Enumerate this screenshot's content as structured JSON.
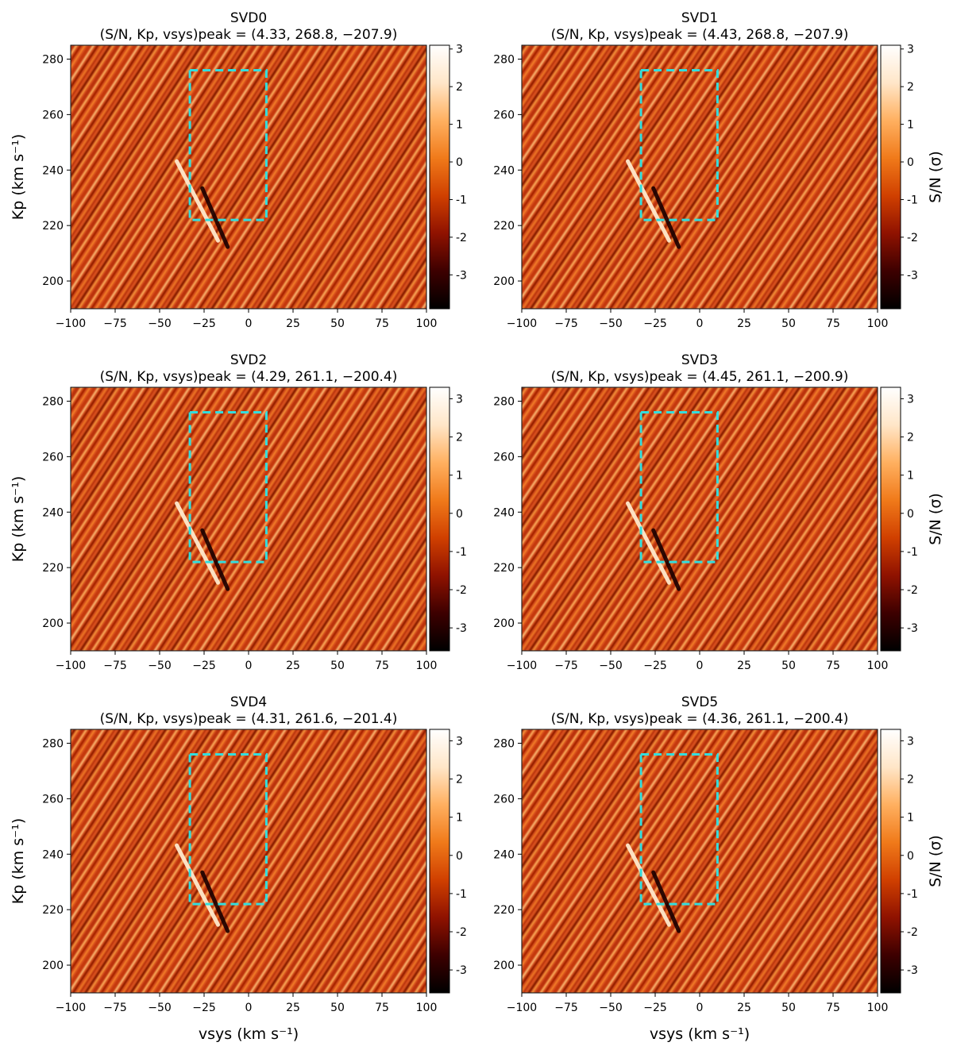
{
  "figure": {
    "description_free": true
  },
  "colorbar": {
    "label": "S/N (σ)",
    "ticks": [
      "3",
      "2",
      "1",
      "0",
      "-1",
      "-2",
      "-3"
    ],
    "colormap": [
      "#000000",
      "#3d0000",
      "#8f1200",
      "#d04000",
      "#f07a1a",
      "#ffb060",
      "#ffe6c8",
      "#ffffff"
    ]
  },
  "box_color": "#33dddd",
  "chart_data": [
    {
      "type": "heatmap",
      "name": "SVD0",
      "title": "SVD0",
      "subtitle": "(S/N, Kp, vsys)peak = (4.33, 268.8, −207.9)",
      "peak": {
        "snr": 4.33,
        "kp": 268.8,
        "vsys": -207.9
      },
      "xlim": [
        -100,
        100
      ],
      "ylim": [
        190,
        285
      ],
      "xticks": [
        -100,
        -75,
        -50,
        -25,
        0,
        25,
        50,
        75,
        100
      ],
      "yticks": [
        200,
        220,
        240,
        260,
        280
      ],
      "xlabel": "",
      "ylabel": "Kp (km s⁻¹)",
      "colorbar_range": [
        -3.9,
        3.1
      ],
      "colorbar_label": "",
      "box": {
        "x": [
          -33,
          10
        ],
        "y": [
          222,
          276
        ]
      }
    },
    {
      "type": "heatmap",
      "name": "SVD1",
      "title": "SVD1",
      "subtitle": "(S/N, Kp, vsys)peak = (4.43, 268.8, −207.9)",
      "peak": {
        "snr": 4.43,
        "kp": 268.8,
        "vsys": -207.9
      },
      "xlim": [
        -100,
        100
      ],
      "ylim": [
        190,
        285
      ],
      "xticks": [
        -100,
        -75,
        -50,
        -25,
        0,
        25,
        50,
        75,
        100
      ],
      "yticks": [
        200,
        220,
        240,
        260,
        280
      ],
      "xlabel": "",
      "ylabel": "",
      "colorbar_range": [
        -3.9,
        3.1
      ],
      "colorbar_label": "S/N (σ)",
      "box": {
        "x": [
          -33,
          10
        ],
        "y": [
          222,
          276
        ]
      }
    },
    {
      "type": "heatmap",
      "name": "SVD2",
      "title": "SVD2",
      "subtitle": "(S/N, Kp, vsys)peak = (4.29, 261.1, −200.4)",
      "peak": {
        "snr": 4.29,
        "kp": 261.1,
        "vsys": -200.4
      },
      "xlim": [
        -100,
        100
      ],
      "ylim": [
        190,
        285
      ],
      "xticks": [
        -100,
        -75,
        -50,
        -25,
        0,
        25,
        50,
        75,
        100
      ],
      "yticks": [
        200,
        220,
        240,
        260,
        280
      ],
      "xlabel": "",
      "ylabel": "Kp (km s⁻¹)",
      "colorbar_range": [
        -3.6,
        3.3
      ],
      "colorbar_label": "",
      "box": {
        "x": [
          -33,
          10
        ],
        "y": [
          222,
          276
        ]
      }
    },
    {
      "type": "heatmap",
      "name": "SVD3",
      "title": "SVD3",
      "subtitle": "(S/N, Kp, vsys)peak = (4.45, 261.1, −200.9)",
      "peak": {
        "snr": 4.45,
        "kp": 261.1,
        "vsys": -200.9
      },
      "xlim": [
        -100,
        100
      ],
      "ylim": [
        190,
        285
      ],
      "xticks": [
        -100,
        -75,
        -50,
        -25,
        0,
        25,
        50,
        75,
        100
      ],
      "yticks": [
        200,
        220,
        240,
        260,
        280
      ],
      "xlabel": "",
      "ylabel": "",
      "colorbar_range": [
        -3.6,
        3.3
      ],
      "colorbar_label": "S/N (σ)",
      "box": {
        "x": [
          -33,
          10
        ],
        "y": [
          222,
          276
        ]
      }
    },
    {
      "type": "heatmap",
      "name": "SVD4",
      "title": "SVD4",
      "subtitle": "(S/N, Kp, vsys)peak = (4.31, 261.6, −201.4)",
      "peak": {
        "snr": 4.31,
        "kp": 261.6,
        "vsys": -201.4
      },
      "xlim": [
        -100,
        100
      ],
      "ylim": [
        190,
        285
      ],
      "xticks": [
        -100,
        -75,
        -50,
        -25,
        0,
        25,
        50,
        75,
        100
      ],
      "yticks": [
        200,
        220,
        240,
        260,
        280
      ],
      "xlabel": "vsys (km s⁻¹)",
      "ylabel": "Kp (km s⁻¹)",
      "colorbar_range": [
        -3.6,
        3.3
      ],
      "colorbar_label": "",
      "box": {
        "x": [
          -33,
          10
        ],
        "y": [
          222,
          276
        ]
      }
    },
    {
      "type": "heatmap",
      "name": "SVD5",
      "title": "SVD5",
      "subtitle": "(S/N, Kp, vsys)peak = (4.36, 261.1, −200.4)",
      "peak": {
        "snr": 4.36,
        "kp": 261.1,
        "vsys": -200.4
      },
      "xlim": [
        -100,
        100
      ],
      "ylim": [
        190,
        285
      ],
      "xticks": [
        -100,
        -75,
        -50,
        -25,
        0,
        25,
        50,
        75,
        100
      ],
      "yticks": [
        200,
        220,
        240,
        260,
        280
      ],
      "xlabel": "vsys (km s⁻¹)",
      "ylabel": "",
      "colorbar_range": [
        -3.6,
        3.3
      ],
      "colorbar_label": "S/N (σ)",
      "box": {
        "x": [
          -33,
          10
        ],
        "y": [
          222,
          276
        ]
      }
    }
  ]
}
